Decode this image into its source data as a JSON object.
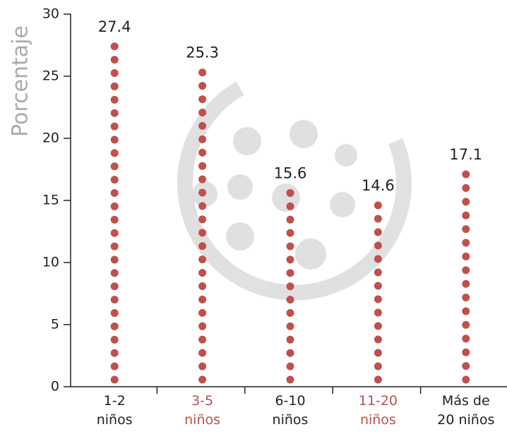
{
  "chart_data": {
    "type": "bar",
    "y_label": "Porcentaje",
    "categories": [
      "1-2\nniños",
      "3-5\nniños",
      "6-10\nniños",
      "11-20\nniños",
      "Más de\n20 niños"
    ],
    "category_colors": [
      "#222222",
      "#b5524f",
      "#222222",
      "#b5524f",
      "#222222"
    ],
    "values": [
      27.4,
      25.3,
      15.6,
      14.6,
      17.1
    ],
    "color": "#c0504d",
    "ylim": [
      0,
      30
    ],
    "yticks": [
      0,
      5,
      10,
      15,
      20,
      25,
      30
    ]
  }
}
